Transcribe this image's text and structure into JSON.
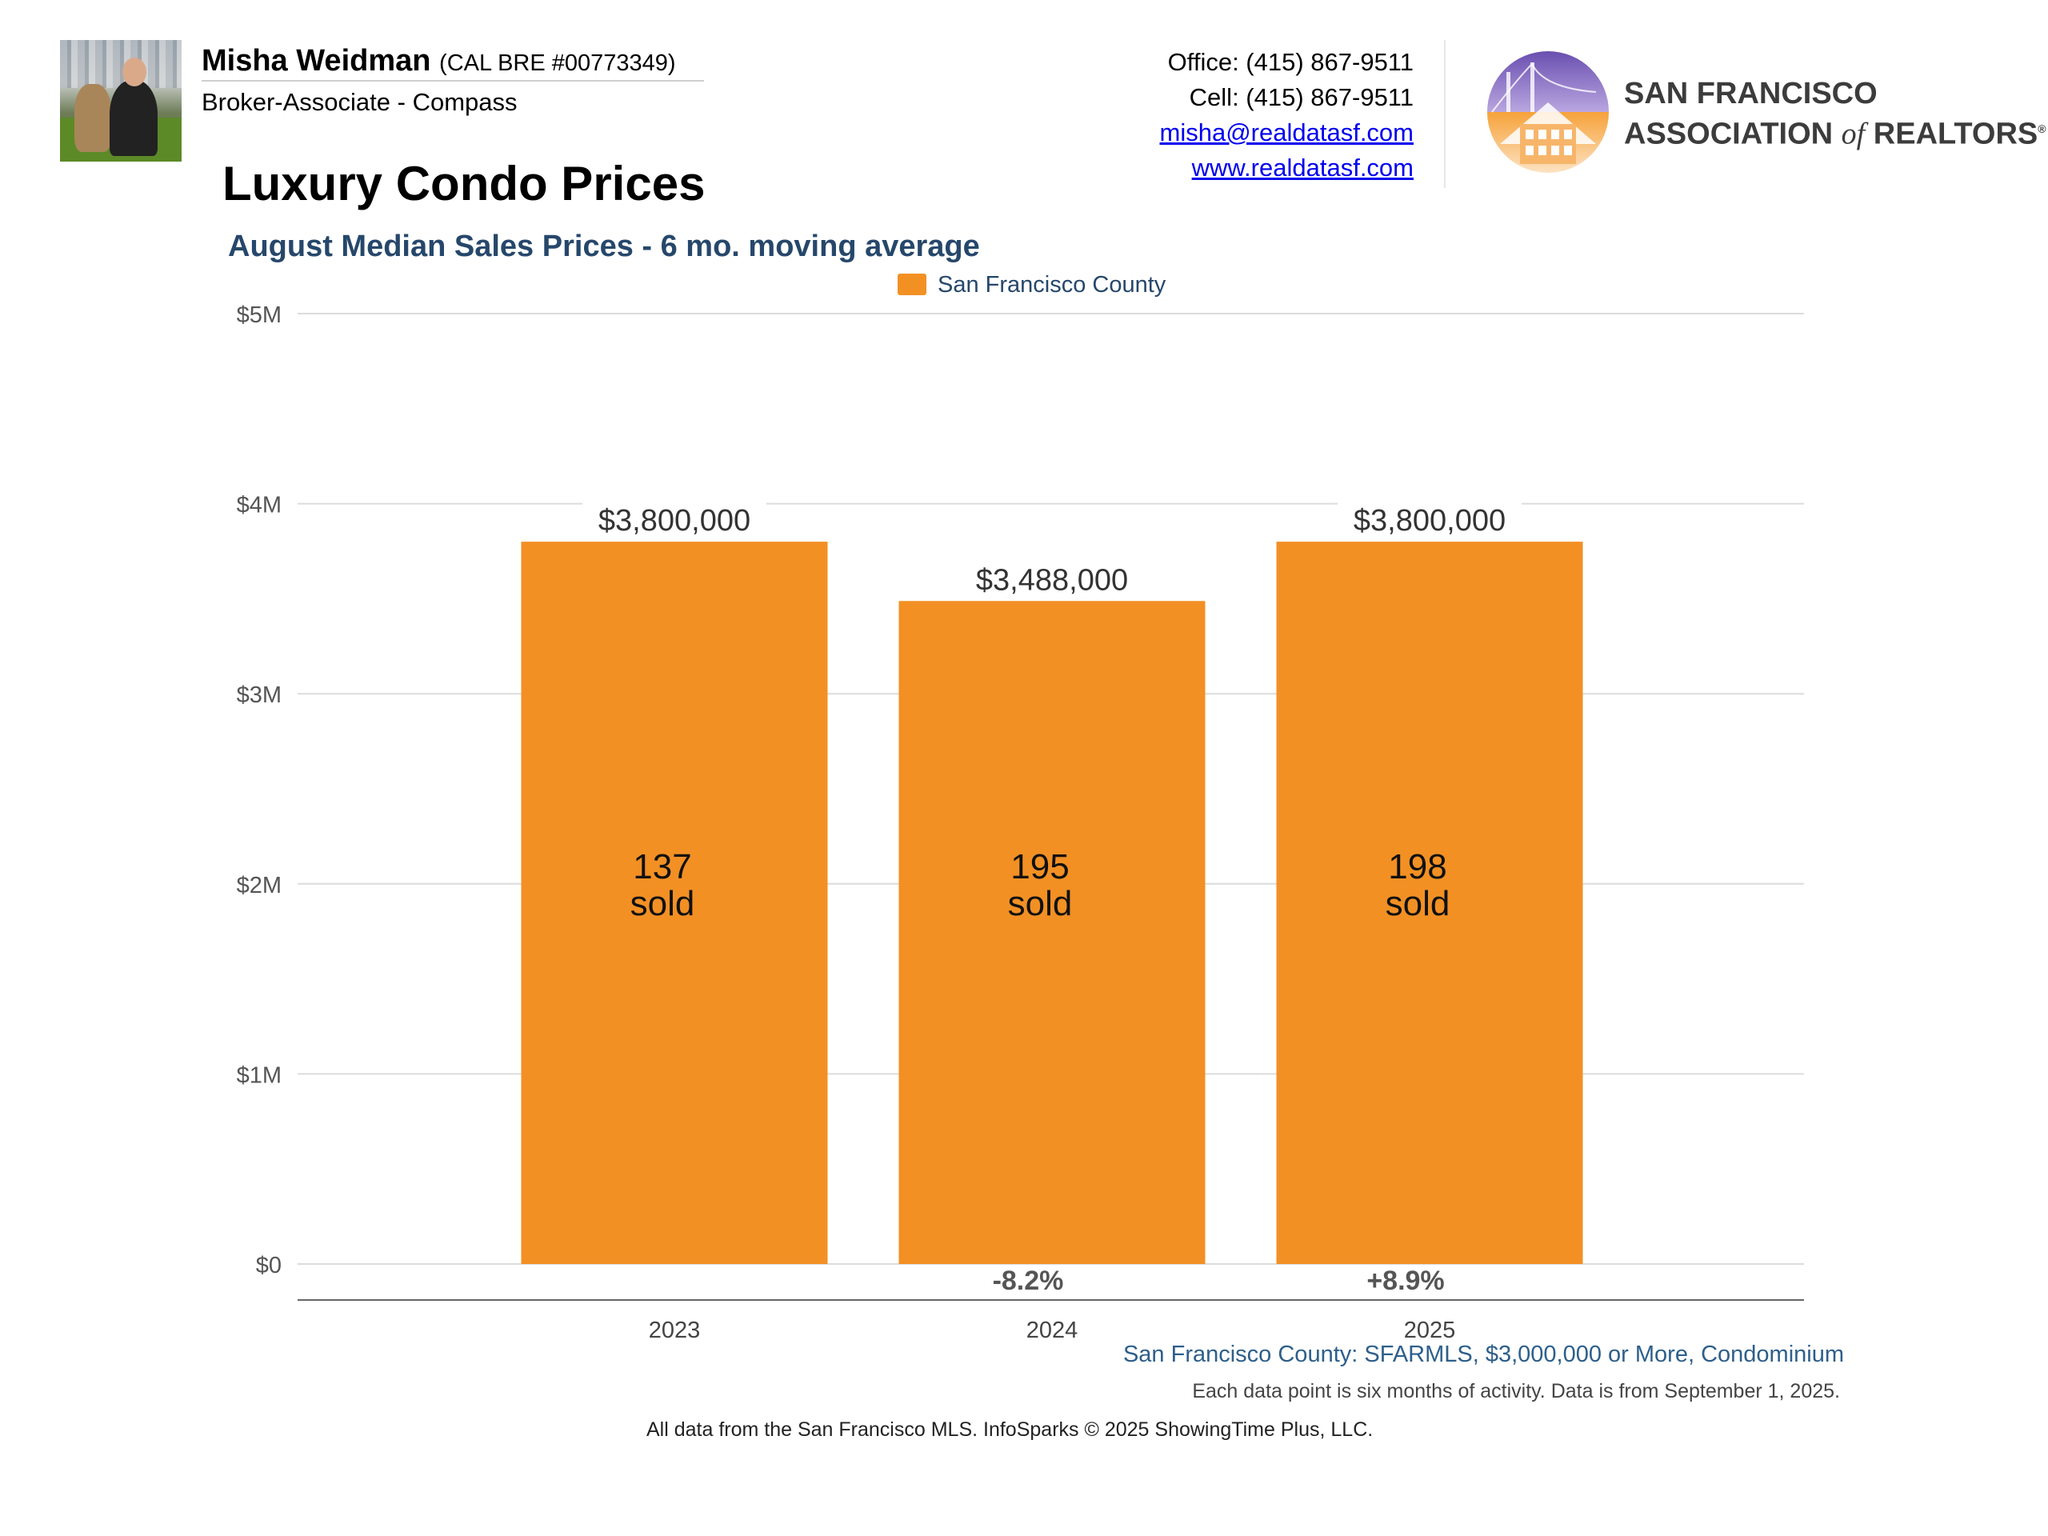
{
  "header": {
    "agent_name": "Misha Weidman",
    "agent_license": "(CAL BRE #00773349)",
    "agent_role": "Broker-Associate - Compass",
    "office": "Office: (415) 867-9511",
    "cell": "Cell: (415) 867-9511",
    "email": "misha@realdatasf.com",
    "website": "www.realdatasf.com",
    "association_line1": "San Francisco",
    "association_line2a": "Association",
    "association_of": "of",
    "association_line2b": "Realtors",
    "association_mark": "®"
  },
  "chart_data": {
    "type": "bar",
    "title": "Luxury Condo Prices",
    "subtitle": "August Median Sales Prices - 6 mo. moving average",
    "categories": [
      "2023",
      "2024",
      "2025"
    ],
    "series": [
      {
        "name": "San Francisco County",
        "color": "#f29024",
        "values": [
          3800000,
          3488000,
          3800000
        ],
        "value_labels": [
          "$3,800,000",
          "$3,488,000",
          "$3,800,000"
        ],
        "sold_counts": [
          "137",
          "195",
          "198"
        ],
        "sold_label": "sold",
        "change_labels": [
          "",
          "-8.2%",
          "+8.9%"
        ]
      }
    ],
    "ylim": [
      0,
      5000000
    ],
    "yticks": [
      {
        "value": 0,
        "label": "$0"
      },
      {
        "value": 1000000,
        "label": "$1M"
      },
      {
        "value": 2000000,
        "label": "$2M"
      },
      {
        "value": 3000000,
        "label": "$3M"
      },
      {
        "value": 4000000,
        "label": "$4M"
      },
      {
        "value": 5000000,
        "label": "$5M"
      }
    ],
    "grid": true,
    "legend_position": "top-center",
    "xlabel": "",
    "ylabel": ""
  },
  "footer": {
    "source": "San Francisco County: SFARMLS, $3,000,000 or More, Condominium",
    "note": "Each data point is six months of activity. Data is from September 1, 2025.",
    "copyright": "All data from the San Francisco MLS. InfoSparks © 2025 ShowingTime Plus, LLC."
  }
}
